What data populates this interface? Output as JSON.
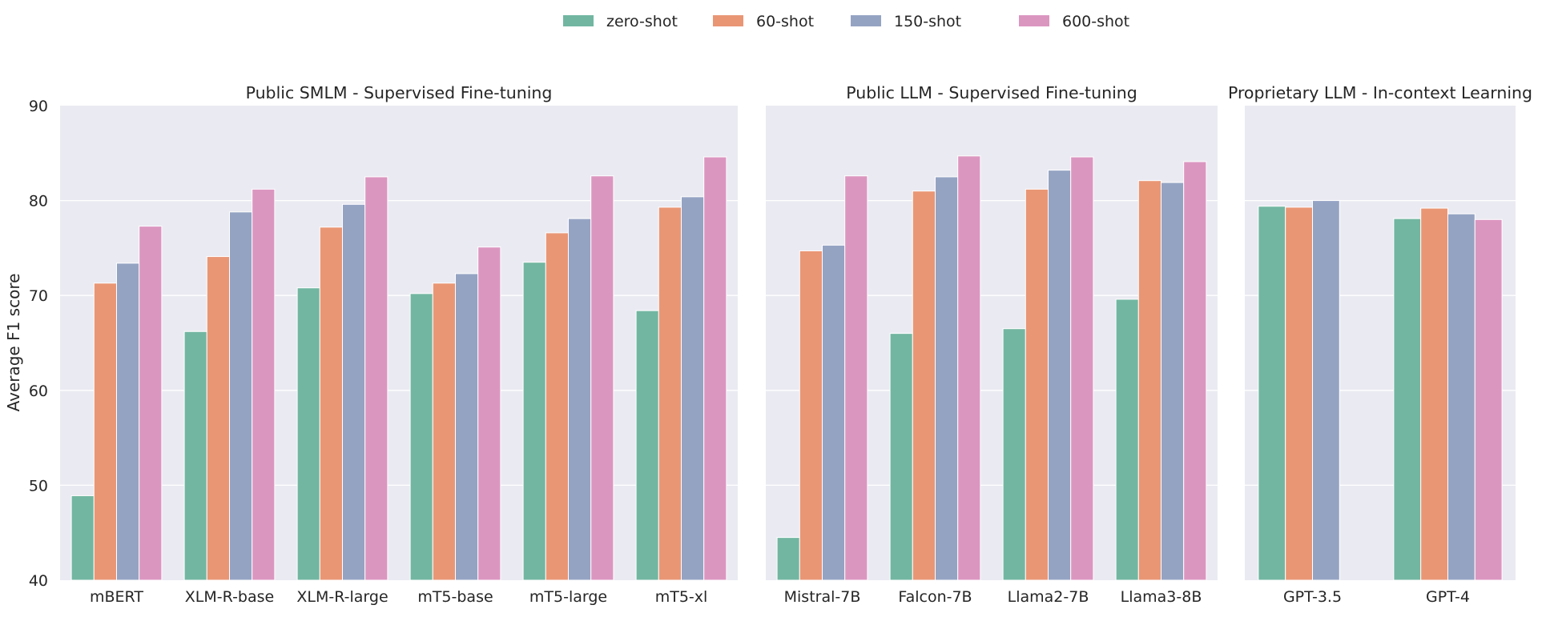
{
  "chart_data": {
    "type": "bar",
    "ylabel": "Average F1 score",
    "ylim": [
      40,
      90
    ],
    "yticks": [
      40,
      50,
      60,
      70,
      80,
      90
    ],
    "grid": true,
    "legend_position": "top-center",
    "series_names": [
      "zero-shot",
      "60-shot",
      "150-shot",
      "600-shot"
    ],
    "colors": [
      "#72b6a1",
      "#e99675",
      "#95a3c3",
      "#db96c0"
    ],
    "panels": [
      {
        "title": "Public SMLM - Supervised Fine-tuning",
        "categories": [
          "mBERT",
          "XLM-R-base",
          "XLM-R-large",
          "mT5-base",
          "mT5-large",
          "mT5-xl"
        ],
        "series": [
          {
            "name": "zero-shot",
            "values": [
              48.9,
              66.2,
              70.8,
              70.2,
              73.5,
              68.4
            ]
          },
          {
            "name": "60-shot",
            "values": [
              71.3,
              74.1,
              77.2,
              71.3,
              76.6,
              79.3
            ]
          },
          {
            "name": "150-shot",
            "values": [
              73.4,
              78.8,
              79.6,
              72.3,
              78.1,
              80.4
            ]
          },
          {
            "name": "600-shot",
            "values": [
              77.3,
              81.2,
              82.5,
              75.1,
              82.6,
              84.6
            ]
          }
        ]
      },
      {
        "title": "Public LLM - Supervised Fine-tuning",
        "categories": [
          "Mistral-7B",
          "Falcon-7B",
          "Llama2-7B",
          "Llama3-8B"
        ],
        "series": [
          {
            "name": "zero-shot",
            "values": [
              44.5,
              66.0,
              66.5,
              69.6
            ]
          },
          {
            "name": "60-shot",
            "values": [
              74.7,
              81.0,
              81.2,
              82.1
            ]
          },
          {
            "name": "150-shot",
            "values": [
              75.3,
              82.5,
              83.2,
              81.9
            ]
          },
          {
            "name": "600-shot",
            "values": [
              82.6,
              84.7,
              84.6,
              84.1
            ]
          }
        ]
      },
      {
        "title": "Proprietary LLM - In-context Learning",
        "categories": [
          "GPT-3.5",
          "GPT-4"
        ],
        "series": [
          {
            "name": "zero-shot",
            "values": [
              79.4,
              78.1
            ]
          },
          {
            "name": "60-shot",
            "values": [
              79.3,
              79.2
            ]
          },
          {
            "name": "150-shot",
            "values": [
              80.0,
              78.6
            ]
          },
          {
            "name": "600-shot",
            "values": [
              null,
              78.0
            ]
          }
        ]
      }
    ]
  }
}
